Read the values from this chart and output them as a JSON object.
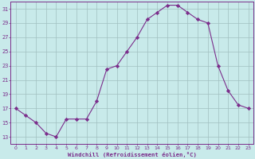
{
  "x": [
    0,
    1,
    2,
    3,
    4,
    5,
    6,
    7,
    8,
    9,
    10,
    11,
    12,
    13,
    14,
    15,
    16,
    17,
    18,
    19,
    20,
    21,
    22,
    23
  ],
  "y": [
    17,
    16,
    15,
    13.5,
    13,
    15.5,
    15.5,
    15.5,
    18,
    22.5,
    23,
    25,
    27,
    29.5,
    30.5,
    31.5,
    31.5,
    30.5,
    29.5,
    29,
    23,
    19.5,
    17.5,
    17
  ],
  "line_color": "#7b2d8b",
  "marker": "D",
  "marker_size": 2.2,
  "bg_color": "#c8eaea",
  "grid_color": "#a0bfc0",
  "xlabel": "Windchill (Refroidissement éolien,°C)",
  "xlabel_color": "#7b2d8b",
  "tick_color": "#7b2d8b",
  "axis_color": "#7b2d8b",
  "ylim": [
    12,
    32
  ],
  "xlim": [
    -0.5,
    23.5
  ],
  "yticks": [
    13,
    15,
    17,
    19,
    21,
    23,
    25,
    27,
    29,
    31
  ],
  "xticks": [
    0,
    1,
    2,
    3,
    4,
    5,
    6,
    7,
    8,
    9,
    10,
    11,
    12,
    13,
    14,
    15,
    16,
    17,
    18,
    19,
    20,
    21,
    22,
    23
  ]
}
